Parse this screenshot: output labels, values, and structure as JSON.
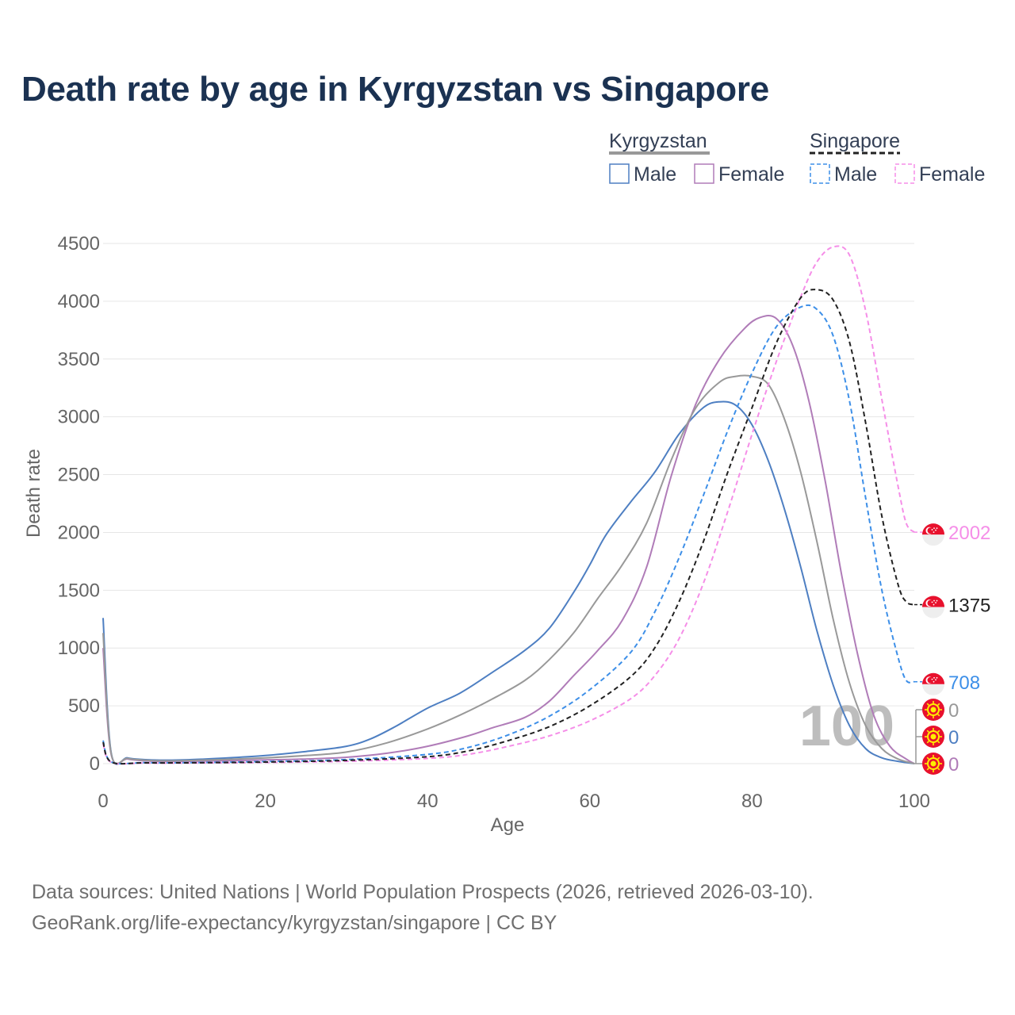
{
  "title": "Death rate by age in Kyrgyzstan vs Singapore",
  "footer": {
    "line1": "Data sources: United Nations | World Population Prospects (2026, retrieved 2026-03-10).",
    "line2": "GeoRank.org/life-expectancy/kyrgyzstan/singapore | CC BY"
  },
  "legend": {
    "groups": [
      {
        "name": "Kyrgyzstan",
        "color": "#999999",
        "dash": false,
        "items": [
          {
            "label": "Male",
            "color": "#4e7fc2"
          },
          {
            "label": "Female",
            "color": "#b07cb8"
          }
        ]
      },
      {
        "name": "Singapore",
        "color": "#222222",
        "dash": true,
        "items": [
          {
            "label": "Male",
            "color": "#3d8fe8"
          },
          {
            "label": "Female",
            "color": "#f58ee8"
          }
        ]
      }
    ]
  },
  "watermark": "100",
  "chart_data": {
    "type": "line",
    "title": "Death rate by age in Kyrgyzstan vs Singapore",
    "xlabel": "Age",
    "ylabel": "Death rate",
    "xlim": [
      0,
      100
    ],
    "ylim": [
      0,
      4500
    ],
    "xticks": [
      0,
      20,
      40,
      60,
      80,
      100
    ],
    "yticks": [
      0,
      500,
      1000,
      1500,
      2000,
      2500,
      3000,
      3500,
      4000,
      4500
    ],
    "grid": true,
    "series": [
      {
        "name": "Kyrgyzstan Male",
        "color": "#4e7fc2",
        "dash": false,
        "points": [
          [
            0,
            1260
          ],
          [
            1,
            95
          ],
          [
            3,
            50
          ],
          [
            5,
            35
          ],
          [
            7,
            30
          ],
          [
            10,
            32
          ],
          [
            15,
            48
          ],
          [
            20,
            70
          ],
          [
            25,
            105
          ],
          [
            30,
            150
          ],
          [
            33,
            215
          ],
          [
            36,
            320
          ],
          [
            40,
            480
          ],
          [
            44,
            610
          ],
          [
            48,
            790
          ],
          [
            52,
            980
          ],
          [
            55,
            1170
          ],
          [
            58,
            1480
          ],
          [
            60,
            1720
          ],
          [
            62,
            1980
          ],
          [
            65,
            2260
          ],
          [
            68,
            2520
          ],
          [
            71,
            2850
          ],
          [
            74,
            3080
          ],
          [
            76,
            3130
          ],
          [
            78,
            3100
          ],
          [
            80,
            2930
          ],
          [
            82,
            2620
          ],
          [
            84,
            2200
          ],
          [
            86,
            1700
          ],
          [
            88,
            1150
          ],
          [
            90,
            680
          ],
          [
            92,
            330
          ],
          [
            94,
            130
          ],
          [
            96,
            50
          ],
          [
            98,
            20
          ],
          [
            100,
            0
          ]
        ],
        "end_value": 0,
        "end_label": "0",
        "end_color": "#4e7fc2",
        "flag": "kg"
      },
      {
        "name": "Kyrgyzstan Female",
        "color": "#b07cb8",
        "dash": false,
        "points": [
          [
            0,
            1000
          ],
          [
            1,
            80
          ],
          [
            3,
            40
          ],
          [
            5,
            25
          ],
          [
            7,
            20
          ],
          [
            10,
            20
          ],
          [
            15,
            25
          ],
          [
            20,
            32
          ],
          [
            25,
            40
          ],
          [
            30,
            55
          ],
          [
            35,
            90
          ],
          [
            40,
            150
          ],
          [
            45,
            240
          ],
          [
            48,
            310
          ],
          [
            52,
            400
          ],
          [
            55,
            540
          ],
          [
            58,
            760
          ],
          [
            61,
            980
          ],
          [
            64,
            1240
          ],
          [
            67,
            1700
          ],
          [
            70,
            2480
          ],
          [
            73,
            3100
          ],
          [
            76,
            3500
          ],
          [
            79,
            3760
          ],
          [
            81,
            3860
          ],
          [
            83,
            3850
          ],
          [
            85,
            3620
          ],
          [
            87,
            3140
          ],
          [
            89,
            2450
          ],
          [
            91,
            1650
          ],
          [
            93,
            950
          ],
          [
            95,
            420
          ],
          [
            97,
            150
          ],
          [
            99,
            40
          ],
          [
            100,
            0
          ]
        ],
        "end_value": 0,
        "end_label": "0",
        "end_color": "#b07cb8",
        "flag": "kg"
      },
      {
        "name": "Kyrgyzstan Total",
        "color": "#999999",
        "dash": false,
        "points": [
          [
            0,
            1130
          ],
          [
            1,
            88
          ],
          [
            3,
            45
          ],
          [
            5,
            30
          ],
          [
            7,
            25
          ],
          [
            10,
            26
          ],
          [
            15,
            36
          ],
          [
            20,
            50
          ],
          [
            25,
            70
          ],
          [
            30,
            100
          ],
          [
            35,
            180
          ],
          [
            40,
            300
          ],
          [
            44,
            420
          ],
          [
            48,
            560
          ],
          [
            52,
            720
          ],
          [
            55,
            900
          ],
          [
            58,
            1130
          ],
          [
            61,
            1430
          ],
          [
            64,
            1720
          ],
          [
            67,
            2080
          ],
          [
            70,
            2620
          ],
          [
            73,
            3070
          ],
          [
            76,
            3300
          ],
          [
            78,
            3350
          ],
          [
            80,
            3350
          ],
          [
            82,
            3280
          ],
          [
            84,
            2980
          ],
          [
            86,
            2520
          ],
          [
            88,
            1920
          ],
          [
            90,
            1250
          ],
          [
            92,
            700
          ],
          [
            94,
            330
          ],
          [
            96,
            130
          ],
          [
            98,
            40
          ],
          [
            100,
            0
          ]
        ],
        "end_value": 0,
        "end_label": "0",
        "end_color": "#999999",
        "flag": "kg"
      },
      {
        "name": "Singapore Male",
        "color": "#3d8fe8",
        "dash": true,
        "points": [
          [
            0,
            200
          ],
          [
            1,
            15
          ],
          [
            5,
            8
          ],
          [
            10,
            8
          ],
          [
            20,
            18
          ],
          [
            30,
            35
          ],
          [
            40,
            80
          ],
          [
            45,
            140
          ],
          [
            50,
            250
          ],
          [
            55,
            410
          ],
          [
            60,
            640
          ],
          [
            65,
            960
          ],
          [
            68,
            1310
          ],
          [
            71,
            1780
          ],
          [
            74,
            2320
          ],
          [
            77,
            2880
          ],
          [
            80,
            3380
          ],
          [
            83,
            3780
          ],
          [
            86,
            3950
          ],
          [
            88,
            3930
          ],
          [
            90,
            3700
          ],
          [
            92,
            3140
          ],
          [
            94,
            2300
          ],
          [
            96,
            1500
          ],
          [
            98,
            920
          ],
          [
            99,
            720
          ],
          [
            100,
            708
          ]
        ],
        "end_value": 708,
        "end_label": "708",
        "end_color": "#3d8fe8",
        "flag": "sg"
      },
      {
        "name": "Singapore Female",
        "color": "#f58ee8",
        "dash": true,
        "points": [
          [
            0,
            170
          ],
          [
            1,
            12
          ],
          [
            5,
            5
          ],
          [
            10,
            5
          ],
          [
            20,
            10
          ],
          [
            30,
            20
          ],
          [
            40,
            45
          ],
          [
            45,
            80
          ],
          [
            50,
            150
          ],
          [
            55,
            240
          ],
          [
            60,
            370
          ],
          [
            65,
            560
          ],
          [
            68,
            760
          ],
          [
            71,
            1080
          ],
          [
            74,
            1560
          ],
          [
            77,
            2180
          ],
          [
            80,
            2850
          ],
          [
            83,
            3480
          ],
          [
            86,
            4040
          ],
          [
            88,
            4340
          ],
          [
            90,
            4470
          ],
          [
            92,
            4400
          ],
          [
            94,
            3920
          ],
          [
            96,
            3150
          ],
          [
            98,
            2400
          ],
          [
            99,
            2080
          ],
          [
            100,
            2002
          ]
        ],
        "end_value": 2002,
        "end_label": "2002",
        "end_color": "#f58ee8",
        "flag": "sg"
      },
      {
        "name": "Singapore Total",
        "color": "#222222",
        "dash": true,
        "points": [
          [
            0,
            185
          ],
          [
            1,
            14
          ],
          [
            5,
            7
          ],
          [
            10,
            7
          ],
          [
            20,
            14
          ],
          [
            30,
            28
          ],
          [
            40,
            60
          ],
          [
            45,
            110
          ],
          [
            50,
            200
          ],
          [
            55,
            320
          ],
          [
            60,
            500
          ],
          [
            65,
            750
          ],
          [
            68,
            1000
          ],
          [
            71,
            1400
          ],
          [
            74,
            1920
          ],
          [
            77,
            2520
          ],
          [
            80,
            3080
          ],
          [
            83,
            3640
          ],
          [
            86,
            4030
          ],
          [
            88,
            4100
          ],
          [
            90,
            4010
          ],
          [
            92,
            3650
          ],
          [
            94,
            2950
          ],
          [
            96,
            2140
          ],
          [
            98,
            1550
          ],
          [
            99,
            1400
          ],
          [
            100,
            1375
          ]
        ],
        "end_value": 1375,
        "end_label": "1375",
        "end_color": "#222222",
        "flag": "sg"
      }
    ]
  }
}
